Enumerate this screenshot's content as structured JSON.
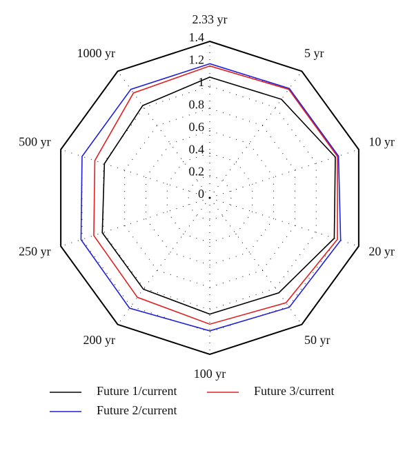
{
  "chart_data": {
    "type": "radar",
    "categories": [
      "2.33 yr",
      "5 yr",
      "10 yr",
      "20 yr",
      "50 yr",
      "100 yr",
      "200 yr",
      "250 yr",
      "500 yr",
      "1000 yr"
    ],
    "rlim": [
      0,
      1.4
    ],
    "rticks": [
      0,
      0.2,
      0.4,
      0.6,
      0.8,
      1,
      1.2,
      1.4
    ],
    "series": [
      {
        "name": "Future 1/current",
        "color": "#000000",
        "values": [
          1.08,
          1.09,
          1.18,
          1.17,
          1.05,
          1.04,
          1.01,
          1.01,
          0.99,
          1.02
        ]
      },
      {
        "name": "Future 2/current",
        "color": "#1f1fd6",
        "values": [
          1.2,
          1.21,
          1.21,
          1.23,
          1.21,
          1.19,
          1.22,
          1.21,
          1.2,
          1.2
        ]
      },
      {
        "name": "Future 3/current",
        "color": "#e02020",
        "values": [
          1.18,
          1.2,
          1.2,
          1.2,
          1.16,
          1.13,
          1.1,
          1.09,
          1.08,
          1.16
        ]
      }
    ]
  }
}
